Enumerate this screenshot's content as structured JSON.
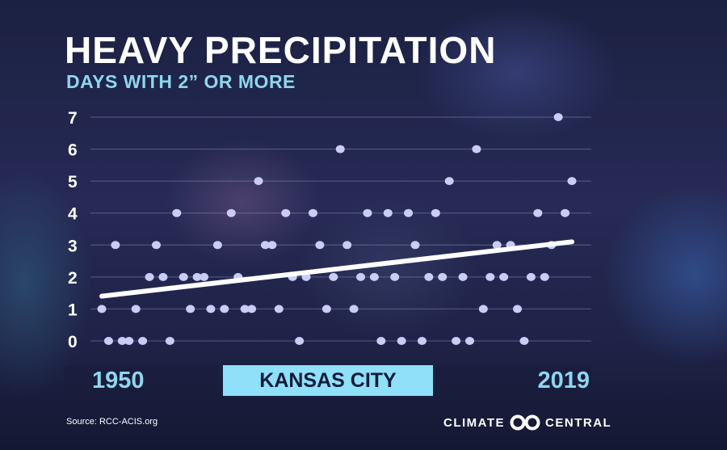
{
  "header": {
    "title": "HEAVY PRECIPITATION",
    "subtitle": "DAYS WITH 2” OR MORE"
  },
  "labels": {
    "start_year": "1950",
    "end_year": "2019",
    "location": "KANSAS CITY"
  },
  "footer": {
    "source": "Source: RCC-ACIS.org",
    "brand_left": "CLIMATE",
    "brand_right": "CENTRAL",
    "logo_icon": "climate-central-logo-icon"
  },
  "colors": {
    "accent": "#8fd6ee",
    "point": "#c9ccf7",
    "trend": "#ffffff"
  },
  "chart_data": {
    "type": "scatter",
    "title": "HEAVY PRECIPITATION",
    "subtitle": "DAYS WITH 2” OR MORE",
    "xlabel": "",
    "ylabel": "",
    "xlim": [
      1950,
      2019
    ],
    "ylim": [
      0,
      7
    ],
    "yticks": [
      0,
      1,
      2,
      3,
      4,
      5,
      6,
      7
    ],
    "grid": true,
    "x": [
      1950,
      1951,
      1952,
      1953,
      1954,
      1955,
      1956,
      1957,
      1958,
      1959,
      1960,
      1961,
      1962,
      1963,
      1964,
      1965,
      1966,
      1967,
      1968,
      1969,
      1970,
      1971,
      1972,
      1973,
      1974,
      1975,
      1976,
      1977,
      1978,
      1979,
      1980,
      1981,
      1982,
      1983,
      1984,
      1985,
      1986,
      1987,
      1988,
      1989,
      1990,
      1991,
      1992,
      1993,
      1994,
      1995,
      1996,
      1997,
      1998,
      1999,
      2000,
      2001,
      2002,
      2003,
      2004,
      2005,
      2006,
      2007,
      2008,
      2009,
      2010,
      2011,
      2012,
      2013,
      2014,
      2015,
      2016,
      2017,
      2018,
      2019
    ],
    "y": [
      1,
      0,
      3,
      0,
      0,
      1,
      0,
      2,
      3,
      2,
      0,
      4,
      2,
      1,
      2,
      2,
      1,
      3,
      1,
      4,
      2,
      1,
      1,
      5,
      3,
      3,
      1,
      4,
      2,
      0,
      2,
      4,
      3,
      1,
      2,
      6,
      3,
      1,
      2,
      4,
      2,
      0,
      4,
      2,
      0,
      4,
      3,
      0,
      2,
      4,
      2,
      5,
      0,
      2,
      0,
      6,
      1,
      2,
      3,
      2,
      3,
      1,
      0,
      2,
      4,
      2,
      3,
      7,
      4,
      5
    ],
    "trendline": {
      "start": [
        1950,
        1.4
      ],
      "end": [
        2019,
        3.1
      ]
    }
  }
}
